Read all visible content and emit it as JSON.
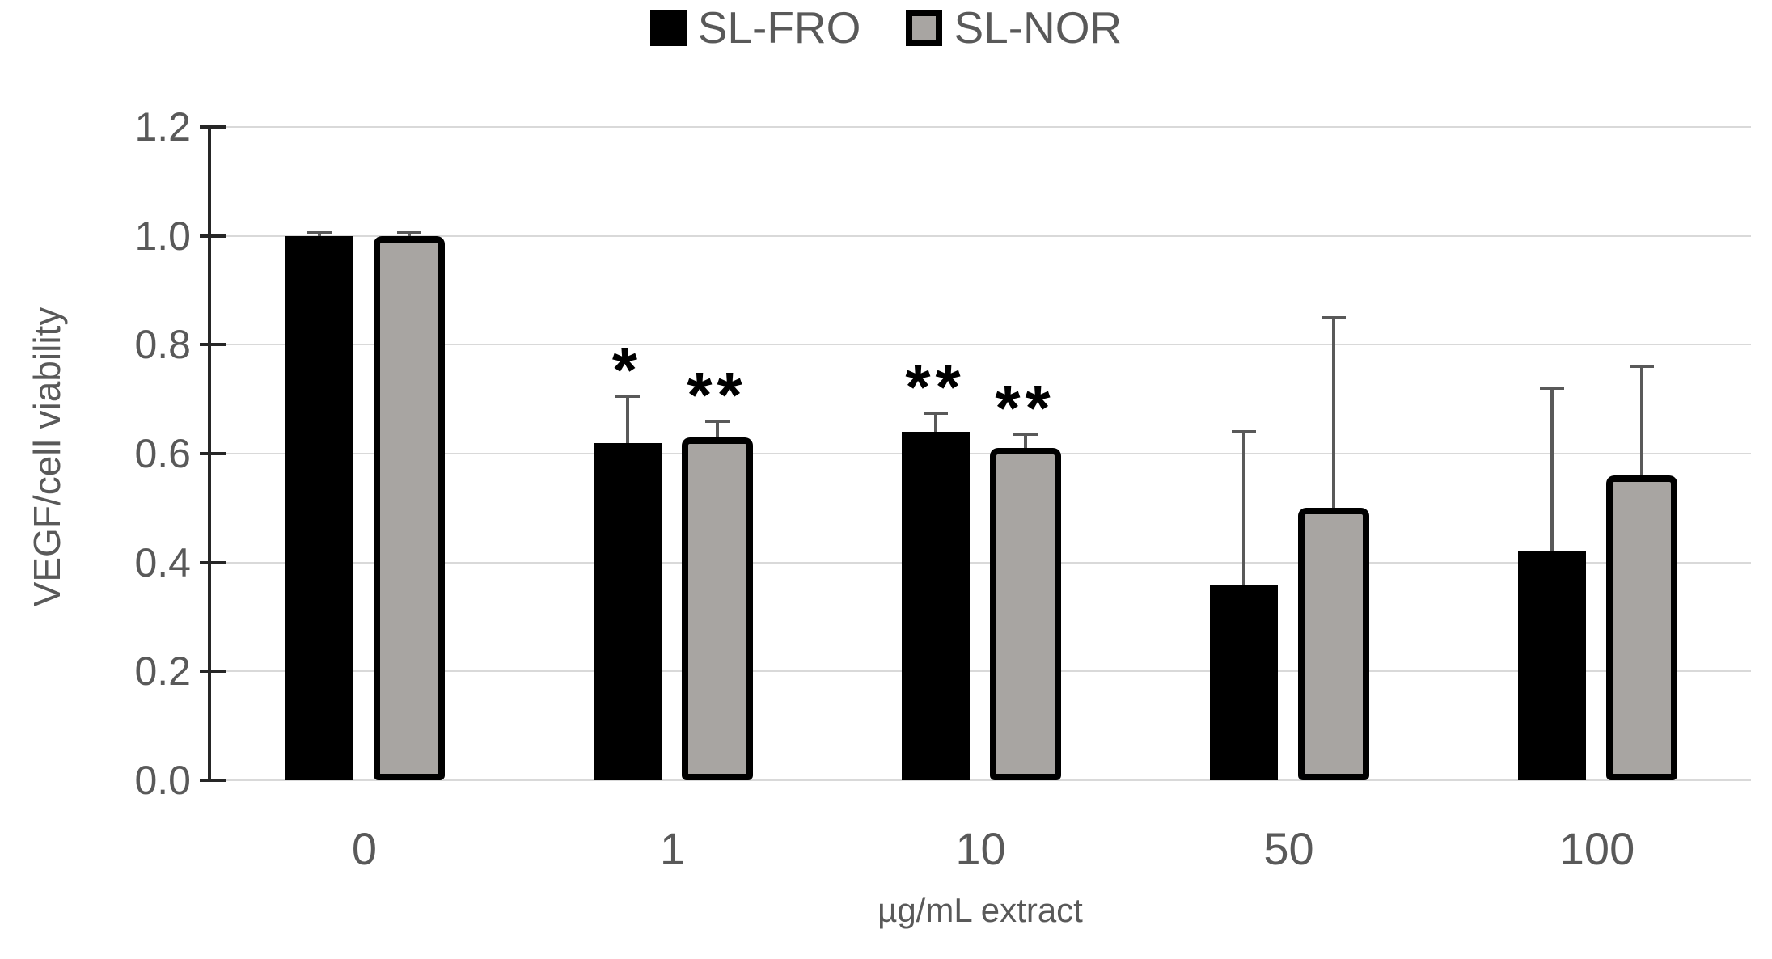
{
  "chart_data": {
    "type": "bar",
    "title": "",
    "categories": [
      "0",
      "1",
      "10",
      "50",
      "100"
    ],
    "series": [
      {
        "name": "SL-FRO",
        "fill": "#000000",
        "border": "#000000",
        "values": [
          1.0,
          0.62,
          0.64,
          0.36,
          0.42
        ],
        "errors_plus": [
          0.005,
          0.085,
          0.035,
          0.28,
          0.3
        ],
        "annotations": [
          "",
          "*",
          "**",
          "",
          ""
        ]
      },
      {
        "name": "SL-NOR",
        "fill": "#a8a5a2",
        "border": "#000000",
        "values": [
          1.0,
          0.63,
          0.61,
          0.5,
          0.56
        ],
        "errors_plus": [
          0.005,
          0.03,
          0.025,
          0.35,
          0.2
        ],
        "annotations": [
          "",
          "**",
          "**",
          "",
          ""
        ]
      }
    ],
    "xlabel": "µg/mL extract",
    "ylabel": "VEGF/cell viability",
    "ylim": [
      0.0,
      1.2
    ],
    "ytick_step": 0.2,
    "yticks": [
      "1.2",
      "1.0",
      "0.8",
      "0.6",
      "0.4",
      "0.2",
      "0.0"
    ],
    "grid": true,
    "legend_position": "top",
    "colors": {
      "gridline": "#d9d9d9",
      "axis": "#262626",
      "text": "#595959",
      "error_bar": "#595959",
      "annotation": "#000000",
      "background": "#ffffff"
    }
  }
}
